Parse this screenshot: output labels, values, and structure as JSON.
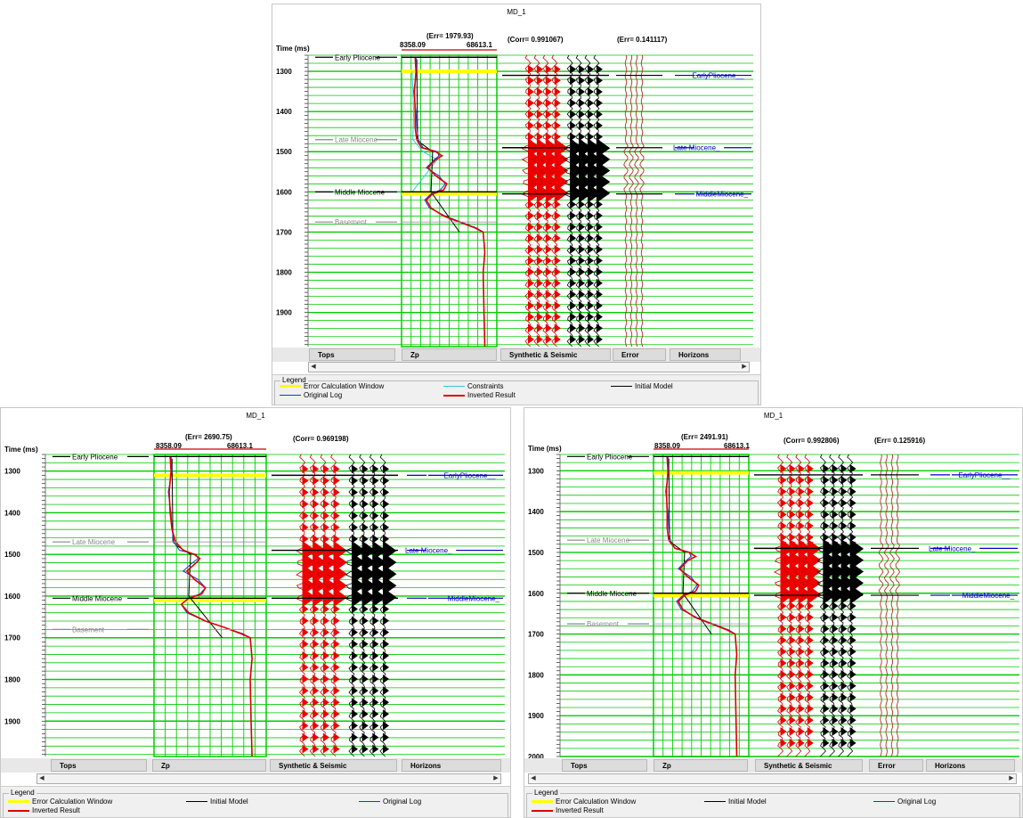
{
  "panels": [
    {
      "id": "top",
      "title": "MD_1",
      "time_label": "Time (ms)",
      "zp_err": "(Err= 1979.93)",
      "zp_min": "8358.09",
      "zp_max": "68613.1",
      "corr": "(Corr= 0.991067)",
      "err2": "(Err= 0.141117)",
      "yticks": [
        "1300",
        "1400",
        "1500",
        "1600",
        "1700",
        "1800",
        "1900"
      ],
      "tops": [
        "Early Pliocene",
        "Late Miocene",
        "Middle Miocene",
        "Basement"
      ],
      "horizons": [
        "EarlyPliocene__",
        "Late Miocene_",
        "MiddleMiocene_"
      ],
      "tabs": [
        "Tops",
        "Zp",
        "Synthetic & Seismic",
        "Error",
        "Horizons"
      ],
      "legend": {
        "title": "Legend",
        "items": [
          "Error Calculation Window",
          "Constraints",
          "Initial Model",
          "Original Log",
          "Inverted Result"
        ]
      }
    },
    {
      "id": "bottom-left",
      "title": "MD_1",
      "time_label": "Time (ms)",
      "zp_err": "(Err= 2690.75)",
      "zp_min": "8358.09",
      "zp_max": "68613.1",
      "corr": "(Corr= 0.969198)",
      "err2": "",
      "yticks": [
        "1300",
        "1400",
        "1500",
        "1600",
        "1700",
        "1800",
        "1900"
      ],
      "tops": [
        "Early Pliocene",
        "Late Miocene",
        "Middle Miocene",
        "Basement"
      ],
      "horizons": [
        "EarlyPliocene__",
        "Late Miocene_",
        "MiddleMiocene_"
      ],
      "tabs": [
        "Tops",
        "Zp",
        "Synthetic & Seismic",
        "Horizons"
      ],
      "legend": {
        "title": "Legend",
        "items": [
          "Error Calculation Window",
          "Initial Model",
          "Original Log",
          "Inverted Result"
        ]
      }
    },
    {
      "id": "bottom-right",
      "title": "MD_1",
      "time_label": "Time (ms)",
      "zp_err": "(Err= 2491.91)",
      "zp_min": "8358.09",
      "zp_max": "68613.1",
      "corr": "(Corr= 0.992806)",
      "err2": "(Err= 0.125916)",
      "yticks": [
        "1300",
        "1400",
        "1500",
        "1600",
        "1700",
        "1800",
        "1900",
        "2000"
      ],
      "tops": [
        "Early Pliocene",
        "Late Miocene",
        "Middle Miocene",
        "Basement"
      ],
      "horizons": [
        "EarlyPliocene__",
        "Late Miocene_",
        "MiddleMiocene_"
      ],
      "tabs": [
        "Tops",
        "Zp",
        "Synthetic & Seismic",
        "Error",
        "Horizons"
      ],
      "legend": {
        "title": "Legend",
        "items": [
          "Error Calculation Window",
          "Initial Model",
          "Original Log",
          "Inverted Result"
        ]
      }
    }
  ],
  "colors": {
    "grid": "#00cc00",
    "window": "#ffff00",
    "inverted": "#e00000",
    "original": "#2233cc",
    "constraints": "#33ccdd",
    "initial": "#000000",
    "horizon": "#0000cc",
    "top_line": "#000000"
  },
  "chart_data": [
    {
      "type": "line",
      "panel": "top",
      "xlabel": "Zp",
      "xlim": [
        8358.09,
        68613.1
      ],
      "ylabel": "Time (ms)",
      "ylim": [
        1260,
        1985
      ],
      "error_window": [
        1300,
        1605
      ],
      "tops_time": [
        1265,
        1470,
        1600,
        1675
      ],
      "horizons_time": [
        1310,
        1490,
        1605
      ],
      "series": [
        {
          "name": "Inverted Result",
          "y": [
            1265,
            1300,
            1350,
            1400,
            1440,
            1470,
            1490,
            1500,
            1510,
            1520,
            1540,
            1560,
            1580,
            1595,
            1605,
            1620,
            1640,
            1660,
            1675,
            1690,
            1700,
            1750,
            1800,
            1900,
            1985
          ],
          "x": [
            17000,
            17500,
            16500,
            17000,
            17000,
            18000,
            21000,
            30000,
            34000,
            30000,
            25000,
            30000,
            37000,
            35000,
            28000,
            24000,
            27000,
            35000,
            45000,
            55000,
            60000,
            61000,
            60000,
            60500,
            61000
          ]
        },
        {
          "name": "Original Log",
          "y": [
            1265,
            1300,
            1350,
            1400,
            1440,
            1470,
            1490,
            1500,
            1510,
            1520,
            1540,
            1560,
            1580,
            1595,
            1605,
            1620,
            1640,
            1660,
            1675,
            1690,
            1700,
            1750,
            1800,
            1900,
            1985
          ],
          "x": [
            17500,
            18000,
            16000,
            17500,
            18000,
            19000,
            22000,
            31000,
            32000,
            29000,
            24000,
            32000,
            36000,
            33000,
            27000,
            23000,
            26000,
            36000,
            46000,
            56000,
            60000,
            61000,
            60000,
            60500,
            61000
          ]
        },
        {
          "name": "Constraints",
          "y": [
            1300,
            1400,
            1470,
            1500,
            1520,
            1560,
            1600
          ],
          "x": [
            15000,
            16000,
            15500,
            22000,
            31000,
            23000,
            15000
          ]
        },
        {
          "name": "Initial Model",
          "y": [
            1270,
            1470,
            1480,
            1500,
            1600,
            1700
          ],
          "x": [
            18000,
            18500,
            21000,
            28000,
            27000,
            45000
          ]
        }
      ]
    },
    {
      "type": "line",
      "panel": "bottom-left",
      "xlabel": "Zp",
      "xlim": [
        8358.09,
        68613.1
      ],
      "ylabel": "Time (ms)",
      "ylim": [
        1260,
        1985
      ],
      "error_window": [
        1310,
        1610
      ],
      "tops_time": [
        1265,
        1470,
        1605,
        1680
      ],
      "horizons_time": [
        1310,
        1490,
        1605
      ],
      "series": [
        {
          "name": "Inverted Result",
          "y": [
            1265,
            1300,
            1350,
            1400,
            1440,
            1470,
            1490,
            1500,
            1510,
            1520,
            1540,
            1560,
            1580,
            1595,
            1605,
            1620,
            1640,
            1660,
            1675,
            1690,
            1700,
            1750,
            1800,
            1900,
            1985
          ],
          "x": [
            17000,
            17500,
            16500,
            17000,
            18000,
            20000,
            24000,
            30000,
            33000,
            31000,
            26000,
            30000,
            36000,
            34000,
            27000,
            23000,
            27000,
            36000,
            46000,
            55000,
            60000,
            61000,
            60000,
            60500,
            61000
          ]
        },
        {
          "name": "Original Log",
          "y": [
            1265,
            1300,
            1350,
            1400,
            1440,
            1470,
            1490,
            1500,
            1510,
            1520,
            1540,
            1560,
            1580,
            1595,
            1605,
            1620,
            1640,
            1660,
            1675,
            1690,
            1700,
            1750,
            1800,
            1900,
            1985
          ],
          "x": [
            17500,
            18000,
            16000,
            17500,
            18000,
            19000,
            22000,
            31000,
            32000,
            29000,
            24000,
            32000,
            36000,
            33000,
            27000,
            23000,
            26000,
            36000,
            46000,
            56000,
            60000,
            61000,
            60000,
            60500,
            61000
          ]
        },
        {
          "name": "Initial Model",
          "y": [
            1270,
            1470,
            1480,
            1500,
            1600,
            1700
          ],
          "x": [
            18000,
            18500,
            21000,
            28000,
            27000,
            45000
          ]
        }
      ]
    },
    {
      "type": "line",
      "panel": "bottom-right",
      "xlabel": "Zp",
      "xlim": [
        8358.09,
        68613.1
      ],
      "ylabel": "Time (ms)",
      "ylim": [
        1260,
        2000
      ],
      "error_window": [
        1305,
        1605
      ],
      "tops_time": [
        1265,
        1470,
        1600,
        1675
      ],
      "horizons_time": [
        1310,
        1490,
        1605
      ],
      "series": [
        {
          "name": "Inverted Result",
          "y": [
            1265,
            1300,
            1350,
            1400,
            1440,
            1470,
            1490,
            1500,
            1510,
            1520,
            1540,
            1560,
            1580,
            1595,
            1605,
            1620,
            1640,
            1660,
            1675,
            1690,
            1700,
            1750,
            1800,
            1900,
            2000
          ],
          "x": [
            17000,
            17500,
            16500,
            17000,
            17000,
            18000,
            22000,
            31000,
            35000,
            30000,
            25000,
            30000,
            37000,
            35000,
            28000,
            24000,
            27000,
            35000,
            45000,
            55000,
            60000,
            61000,
            60000,
            60500,
            61000
          ]
        },
        {
          "name": "Original Log",
          "y": [
            1265,
            1300,
            1350,
            1400,
            1440,
            1470,
            1490,
            1500,
            1510,
            1520,
            1540,
            1560,
            1580,
            1595,
            1605,
            1620,
            1640,
            1660,
            1675,
            1690,
            1700,
            1750,
            1800,
            1900,
            2000
          ],
          "x": [
            17500,
            18000,
            16000,
            17500,
            18000,
            19000,
            22000,
            31000,
            32000,
            29000,
            24000,
            32000,
            36000,
            33000,
            27000,
            23000,
            26000,
            36000,
            46000,
            56000,
            60000,
            61000,
            60000,
            60500,
            61000
          ]
        },
        {
          "name": "Initial Model",
          "y": [
            1270,
            1470,
            1480,
            1500,
            1600,
            1700
          ],
          "x": [
            18000,
            18500,
            21000,
            28000,
            27000,
            45000
          ]
        }
      ]
    }
  ]
}
